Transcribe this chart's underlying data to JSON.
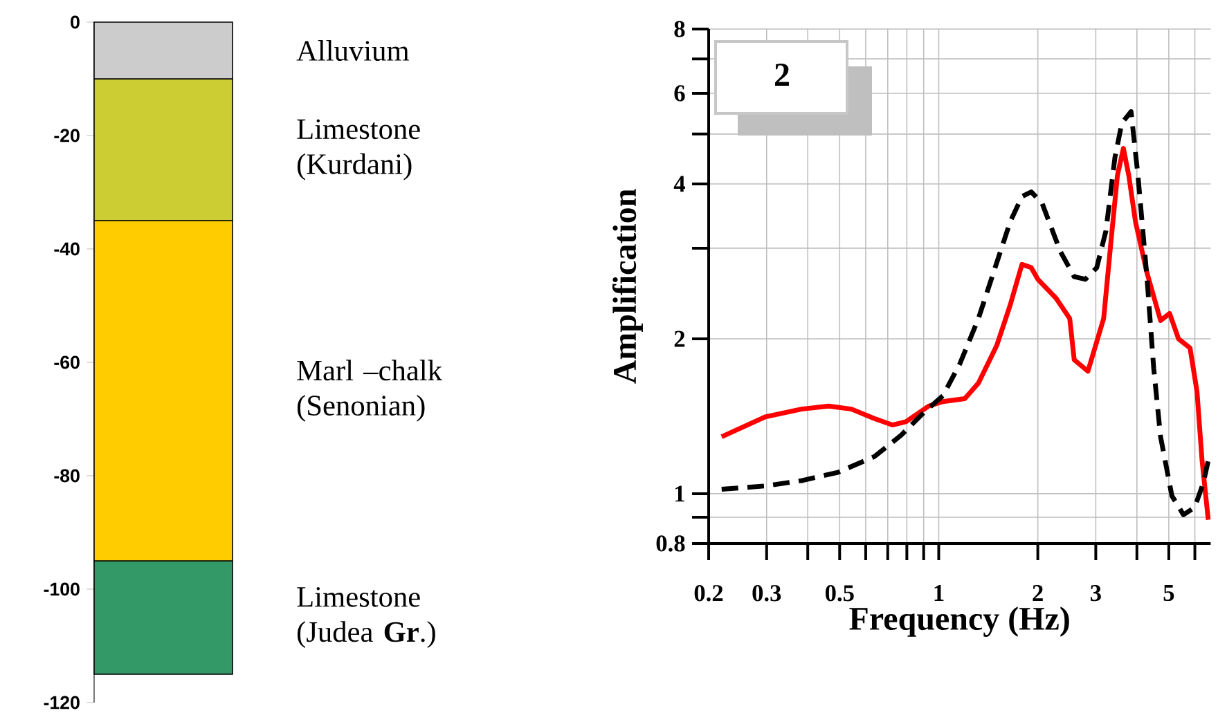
{
  "chart_data": [
    {
      "type": "bar",
      "stacked": true,
      "categories": [
        null
      ],
      "ylim": [
        -120,
        0
      ],
      "yticks": [
        0,
        -20,
        -40,
        -60,
        -80,
        -100,
        -120
      ],
      "tick_labels": "y",
      "series": [
        {
          "name": "Alluvium",
          "color": "#cccccc",
          "values": [
            -10
          ]
        },
        {
          "name": "Limestone (Kurdani)",
          "color": "#cccc33",
          "values": [
            -25
          ]
        },
        {
          "name": "Marl –chalk (Senonian)",
          "color": "#ffcc00",
          "values": [
            -60
          ]
        },
        {
          "name": "Limestone (Judea **Gr**.)",
          "color": "#339966",
          "values": [
            -20
          ]
        }
      ]
    },
    {
      "type": "line",
      "annotations": [
        "2"
      ],
      "xlabel": "Frequency (Hz)",
      "ylabel": "Amplification",
      "log": "xy",
      "grid": true,
      "marker": "none",
      "xlim": [
        0.2,
        6.7
      ],
      "ylim": [
        0.8,
        8
      ],
      "xticks": [
        0.2,
        0.3,
        {
          "value": 0.4,
          "label": null
        },
        0.5,
        {
          "value": 0.6,
          "label": null
        },
        {
          "value": 0.7,
          "label": null
        },
        {
          "value": 0.8,
          "label": null
        },
        {
          "value": 0.9,
          "label": null
        },
        1,
        2,
        3,
        {
          "value": 4,
          "label": null
        },
        5,
        {
          "value": 6,
          "label": null
        }
      ],
      "yticks": [
        0.8,
        {
          "value": 0.9,
          "label": null
        },
        1,
        2,
        {
          "value": 3,
          "label": null
        },
        4,
        {
          "value": 5,
          "label": null
        },
        6,
        {
          "value": 7,
          "label": null
        },
        8
      ],
      "series": [
        {
          "color": "#ff0000",
          "line_style": "solid",
          "x": [
            0.219,
            0.297,
            0.383,
            0.463,
            0.543,
            0.637,
            0.723,
            0.795,
            0.932,
            1.03,
            1.2,
            1.32,
            1.5,
            1.65,
            1.79,
            1.91,
            2.0,
            2.27,
            2.5,
            2.58,
            2.84,
            3.17,
            3.33,
            3.49,
            3.64,
            3.78,
            3.96,
            4.29,
            4.72,
            5.03,
            5.35,
            5.8,
            6.09,
            6.31,
            6.59
          ],
          "values": [
            1.29,
            1.41,
            1.46,
            1.48,
            1.46,
            1.4,
            1.36,
            1.38,
            1.48,
            1.51,
            1.53,
            1.64,
            1.94,
            2.33,
            2.79,
            2.75,
            2.61,
            2.4,
            2.19,
            1.82,
            1.73,
            2.19,
            3.05,
            4.15,
            4.69,
            4.15,
            3.38,
            2.69,
            2.17,
            2.24,
            2.0,
            1.92,
            1.58,
            1.16,
            0.89
          ]
        },
        {
          "color": "#000000",
          "line_style": "dashed",
          "x": [
            0.219,
            0.297,
            0.383,
            0.494,
            0.637,
            0.77,
            0.903,
            1.03,
            1.16,
            1.32,
            1.5,
            1.65,
            1.79,
            1.91,
            2.06,
            2.34,
            2.58,
            2.79,
            3.02,
            3.22,
            3.43,
            3.6,
            3.84,
            4.03,
            4.29,
            4.5,
            4.72,
            5.11,
            5.54,
            5.99,
            6.37,
            6.59
          ],
          "values": [
            1.02,
            1.035,
            1.06,
            1.1,
            1.18,
            1.3,
            1.44,
            1.55,
            1.79,
            2.19,
            2.81,
            3.38,
            3.78,
            3.86,
            3.67,
            2.96,
            2.64,
            2.61,
            2.75,
            3.24,
            4.5,
            5.25,
            5.53,
            4.15,
            2.64,
            1.75,
            1.29,
            0.99,
            0.91,
            0.94,
            1.05,
            1.16
          ]
        }
      ]
    }
  ]
}
